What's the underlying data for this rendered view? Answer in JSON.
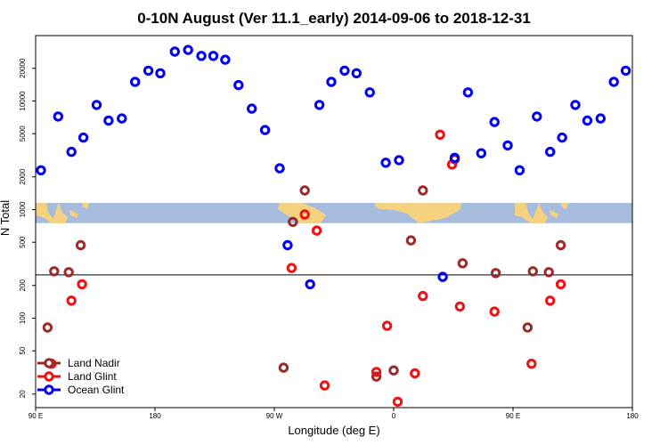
{
  "chart_data": {
    "type": "scatter",
    "title": "0-10N August (Ver 11.1_early)   2014-09-06 to 2018-12-31",
    "xlabel": "Longitude (deg E)",
    "ylabel": "N Total",
    "y_scale": "log",
    "xlim": [
      90,
      540
    ],
    "ylim": [
      15,
      40000
    ],
    "x_ticks": [
      90,
      180,
      270,
      360,
      450,
      540
    ],
    "x_tick_labels": [
      "90 E",
      "180",
      "90 W",
      "0",
      "90 E",
      "180"
    ],
    "y_ticks": [
      20,
      50,
      100,
      200,
      500,
      1000,
      2000,
      5000,
      10000,
      20000
    ],
    "y_tick_labels": [
      "20",
      "50",
      "100",
      "200",
      "500",
      "1000",
      "2000",
      "5000",
      "10000",
      "20000"
    ],
    "reference_line_y": 250,
    "map_strip": {
      "y_min": 750,
      "y_max": 1150,
      "ocean_color": "#a7bcdc",
      "land_color": "#f6d27e"
    },
    "legend": {
      "position": "bottom-left"
    },
    "series": [
      {
        "name": "Land Nadir",
        "color": "#9b2b2b",
        "points": [
          {
            "x": 99,
            "y": 82
          },
          {
            "x": 104,
            "y": 270
          },
          {
            "x": 115,
            "y": 265
          },
          {
            "x": 124,
            "y": 470
          },
          {
            "x": 277,
            "y": 35
          },
          {
            "x": 284,
            "y": 770
          },
          {
            "x": 293,
            "y": 1500
          },
          {
            "x": 347,
            "y": 29
          },
          {
            "x": 360,
            "y": 33
          },
          {
            "x": 373,
            "y": 520
          },
          {
            "x": 382,
            "y": 1500
          },
          {
            "x": 406,
            "y": 2900
          },
          {
            "x": 412,
            "y": 320
          },
          {
            "x": 437,
            "y": 260
          },
          {
            "x": 461,
            "y": 82
          },
          {
            "x": 465,
            "y": 270
          },
          {
            "x": 477,
            "y": 265
          },
          {
            "x": 486,
            "y": 470
          }
        ]
      },
      {
        "name": "Land Glint",
        "color": "#ee1111",
        "points": [
          {
            "x": 102,
            "y": 38
          },
          {
            "x": 117,
            "y": 145
          },
          {
            "x": 125,
            "y": 205
          },
          {
            "x": 283,
            "y": 290
          },
          {
            "x": 293,
            "y": 900
          },
          {
            "x": 302,
            "y": 640
          },
          {
            "x": 308,
            "y": 24
          },
          {
            "x": 347,
            "y": 32
          },
          {
            "x": 355,
            "y": 85
          },
          {
            "x": 363,
            "y": 17
          },
          {
            "x": 376,
            "y": 31
          },
          {
            "x": 382,
            "y": 160
          },
          {
            "x": 395,
            "y": 4900
          },
          {
            "x": 404,
            "y": 2600
          },
          {
            "x": 410,
            "y": 128
          },
          {
            "x": 436,
            "y": 115
          },
          {
            "x": 464,
            "y": 38
          },
          {
            "x": 478,
            "y": 145
          },
          {
            "x": 486,
            "y": 205
          }
        ]
      },
      {
        "name": "Ocean Glint",
        "color": "#0000ee",
        "points": [
          {
            "x": 94,
            "y": 2300
          },
          {
            "x": 107,
            "y": 7200
          },
          {
            "x": 117,
            "y": 3400
          },
          {
            "x": 126,
            "y": 4600
          },
          {
            "x": 136,
            "y": 9200
          },
          {
            "x": 145,
            "y": 6600
          },
          {
            "x": 155,
            "y": 6900
          },
          {
            "x": 165,
            "y": 15000
          },
          {
            "x": 175,
            "y": 19000
          },
          {
            "x": 184,
            "y": 18000
          },
          {
            "x": 195,
            "y": 28500
          },
          {
            "x": 205,
            "y": 29500
          },
          {
            "x": 215,
            "y": 26000
          },
          {
            "x": 224,
            "y": 26000
          },
          {
            "x": 233,
            "y": 24000
          },
          {
            "x": 243,
            "y": 14000
          },
          {
            "x": 253,
            "y": 8500
          },
          {
            "x": 263,
            "y": 5400
          },
          {
            "x": 274,
            "y": 2400
          },
          {
            "x": 280,
            "y": 470
          },
          {
            "x": 297,
            "y": 205
          },
          {
            "x": 304,
            "y": 9200
          },
          {
            "x": 313,
            "y": 15000
          },
          {
            "x": 323,
            "y": 19000
          },
          {
            "x": 332,
            "y": 18000
          },
          {
            "x": 342,
            "y": 12000
          },
          {
            "x": 354,
            "y": 2700
          },
          {
            "x": 364,
            "y": 2850
          },
          {
            "x": 397,
            "y": 240
          },
          {
            "x": 406,
            "y": 3000
          },
          {
            "x": 416,
            "y": 12000
          },
          {
            "x": 426,
            "y": 3300
          },
          {
            "x": 436,
            "y": 6400
          },
          {
            "x": 446,
            "y": 3900
          },
          {
            "x": 455,
            "y": 2300
          },
          {
            "x": 468,
            "y": 7200
          },
          {
            "x": 478,
            "y": 3400
          },
          {
            "x": 487,
            "y": 4600
          },
          {
            "x": 497,
            "y": 9200
          },
          {
            "x": 506,
            "y": 6600
          },
          {
            "x": 516,
            "y": 6900
          },
          {
            "x": 526,
            "y": 15000
          },
          {
            "x": 535,
            "y": 19000
          }
        ]
      }
    ]
  }
}
